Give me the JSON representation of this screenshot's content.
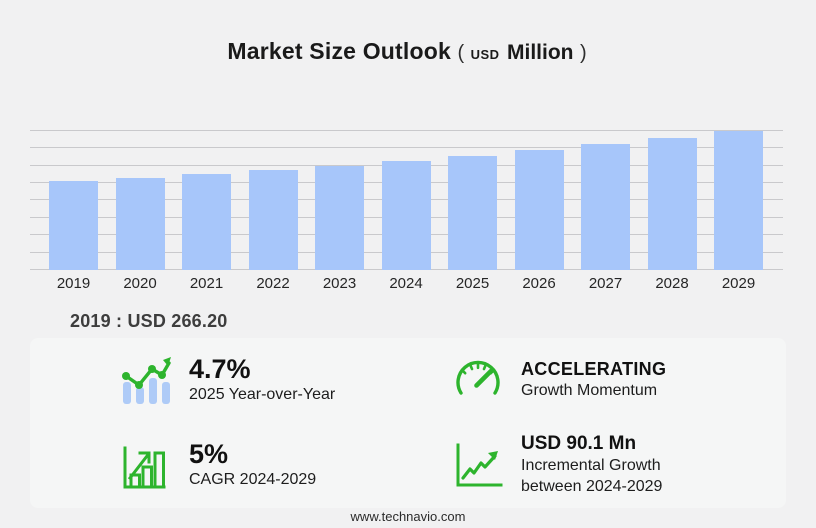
{
  "title": {
    "main": "Market Size Outlook",
    "paren_open": "(",
    "currency": "USD",
    "unit": "Million",
    "paren_close": ")"
  },
  "chart_data": {
    "type": "bar",
    "categories": [
      "2019",
      "2020",
      "2021",
      "2022",
      "2023",
      "2024",
      "2025",
      "2026",
      "2027",
      "2028",
      "2029"
    ],
    "values": [
      266.2,
      277.2,
      288.7,
      300.6,
      313.1,
      326.1,
      341.4,
      358.7,
      376.9,
      396.1,
      416.2
    ],
    "title": "Market Size Outlook (USD Million)",
    "xlabel": "",
    "ylabel": "USD Million",
    "ylim": [
      0,
      450
    ],
    "grid": true,
    "gridline_count": 9,
    "legend": false,
    "bar_color": "#a7c6fa",
    "gridline_color": "#c9c9cc",
    "note": "Only 2019 value (266.20) labeled on screen; other values estimated from bar heights, 4.7% YoY 2025, 5% CAGR and USD 90.1 Mn incremental growth 2024-2029"
  },
  "annotation_2019": "2019 : USD  266.20",
  "stats": {
    "yoy": {
      "value": "4.7%",
      "label": "2025 Year-over-Year",
      "icon": "bar-trend-icon"
    },
    "momentum": {
      "value": "ACCELERATING",
      "label": "Growth Momentum",
      "icon": "speedometer-icon"
    },
    "cagr": {
      "value": "5%",
      "label": "CAGR 2024-2029",
      "icon": "outlined-bar-growth-icon"
    },
    "incremental": {
      "value": "USD 90.1 Mn",
      "label": "Incremental Growth between 2024-2029",
      "icon": "line-growth-icon"
    }
  },
  "footer": {
    "url": "www.technavio.com"
  },
  "colors": {
    "accent_green": "#2db42d",
    "bar_blue": "#a7c6fa",
    "icon_bar_blue": "#aecbf7",
    "background": "#f1f1f2",
    "panel": "#f5f6f6"
  }
}
